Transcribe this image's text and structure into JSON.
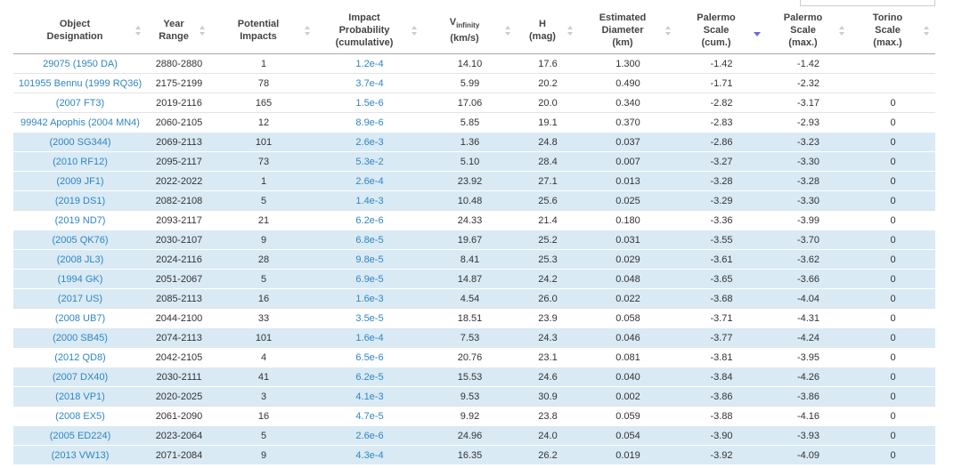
{
  "table": {
    "columns": [
      [
        "Object",
        "Designation"
      ],
      [
        "Year",
        "Range"
      ],
      [
        "Potential",
        "Impacts"
      ],
      [
        "Impact",
        "Probability",
        "(cumulative)"
      ],
      {
        "symbol": "V",
        "subscript": "infinity",
        "unit": "(km/s)"
      },
      [
        "H",
        "(mag)"
      ],
      [
        "Estimated",
        "Diameter",
        "(km)"
      ],
      [
        "Palermo",
        "Scale",
        "(cum.)"
      ],
      [
        "Palermo",
        "Scale",
        "(max.)"
      ],
      [
        "Torino",
        "Scale",
        "(max.)"
      ]
    ],
    "sort": {
      "column": 7,
      "direction": "descending"
    },
    "link_columns": [
      0,
      3
    ],
    "rows": [
      [
        "29075 (1950 DA)",
        "2880-2880",
        "1",
        "1.2e-4",
        "14.10",
        "17.6",
        "1.300",
        "-1.42",
        "-1.42",
        null
      ],
      [
        "101955 Bennu (1999 RQ36)",
        "2175-2199",
        "78",
        "3.7e-4",
        "5.99",
        "20.2",
        "0.490",
        "-1.71",
        "-2.32",
        null
      ],
      [
        "(2007 FT3)",
        "2019-2116",
        "165",
        "1.5e-6",
        "17.06",
        "20.0",
        "0.340",
        "-2.82",
        "-3.17",
        "0"
      ],
      [
        "99942 Apophis (2004 MN4)",
        "2060-2105",
        "12",
        "8.9e-6",
        "5.85",
        "19.1",
        "0.370",
        "-2.83",
        "-2.93",
        "0"
      ],
      [
        "(2000 SG344)",
        "2069-2113",
        "101",
        "2.6e-3",
        "1.36",
        "24.8",
        "0.037",
        "-2.86",
        "-3.23",
        "0"
      ],
      [
        "(2010 RF12)",
        "2095-2117",
        "73",
        "5.3e-2",
        "5.10",
        "28.4",
        "0.007",
        "-3.27",
        "-3.30",
        "0"
      ],
      [
        "(2009 JF1)",
        "2022-2022",
        "1",
        "2.6e-4",
        "23.92",
        "27.1",
        "0.013",
        "-3.28",
        "-3.28",
        "0"
      ],
      [
        "(2019 DS1)",
        "2082-2108",
        "5",
        "1.4e-3",
        "10.48",
        "25.6",
        "0.025",
        "-3.29",
        "-3.30",
        "0"
      ],
      [
        "(2019 ND7)",
        "2093-2117",
        "21",
        "6.2e-6",
        "24.33",
        "21.4",
        "0.180",
        "-3.36",
        "-3.99",
        "0"
      ],
      [
        "(2005 QK76)",
        "2030-2107",
        "9",
        "6.8e-5",
        "19.67",
        "25.2",
        "0.031",
        "-3.55",
        "-3.70",
        "0"
      ],
      [
        "(2008 JL3)",
        "2024-2116",
        "28",
        "9.8e-5",
        "8.41",
        "25.3",
        "0.029",
        "-3.61",
        "-3.62",
        "0"
      ],
      [
        "(1994 GK)",
        "2051-2067",
        "5",
        "6.9e-5",
        "14.87",
        "24.2",
        "0.048",
        "-3.65",
        "-3.66",
        "0"
      ],
      [
        "(2017 US)",
        "2085-2113",
        "16",
        "1.6e-3",
        "4.54",
        "26.0",
        "0.022",
        "-3.68",
        "-4.04",
        "0"
      ],
      [
        "(2008 UB7)",
        "2044-2100",
        "33",
        "3.5e-5",
        "18.51",
        "23.9",
        "0.058",
        "-3.71",
        "-4.31",
        "0"
      ],
      [
        "(2000 SB45)",
        "2074-2113",
        "101",
        "1.6e-4",
        "7.53",
        "24.3",
        "0.046",
        "-3.77",
        "-4.24",
        "0"
      ],
      [
        "(2012 QD8)",
        "2042-2105",
        "4",
        "6.5e-6",
        "20.76",
        "23.1",
        "0.081",
        "-3.81",
        "-3.95",
        "0"
      ],
      [
        "(2007 DX40)",
        "2030-2111",
        "41",
        "6.2e-5",
        "15.53",
        "24.6",
        "0.040",
        "-3.84",
        "-4.26",
        "0"
      ],
      [
        "(2018 VP1)",
        "2020-2025",
        "3",
        "4.1e-3",
        "9.53",
        "30.9",
        "0.002",
        "-3.86",
        "-3.86",
        "0"
      ],
      [
        "(2008 EX5)",
        "2061-2090",
        "16",
        "4.7e-5",
        "9.92",
        "23.8",
        "0.059",
        "-3.88",
        "-4.16",
        "0"
      ],
      [
        "(2005 ED224)",
        "2023-2064",
        "5",
        "2.6e-6",
        "24.96",
        "24.0",
        "0.054",
        "-3.90",
        "-3.93",
        "0"
      ],
      [
        "(2013 VW13)",
        "2071-2084",
        "9",
        "4.3e-4",
        "16.35",
        "26.2",
        "0.019",
        "-3.92",
        "-4.09",
        "0"
      ]
    ],
    "highlighted": [
      false,
      false,
      false,
      false,
      true,
      true,
      true,
      true,
      false,
      true,
      true,
      true,
      true,
      false,
      true,
      false,
      true,
      true,
      false,
      true,
      true
    ]
  }
}
